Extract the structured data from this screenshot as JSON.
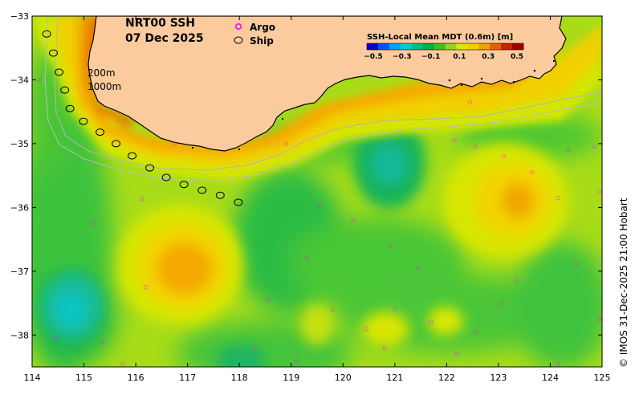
{
  "title": {
    "product": "NRT00 SSH",
    "date": "07 Dec 2025"
  },
  "legend": {
    "argo_label": "Argo",
    "ship_label": "Ship",
    "argo_color": "#ff00ff",
    "ship_color": "#000000"
  },
  "isobaths": {
    "shallow": "200m",
    "deep": "1000m"
  },
  "colorbar": {
    "title": "SSH-Local Mean MDT (0.6m) [m]",
    "ticks": [
      "−0.5",
      "−0.3",
      "−0.1",
      "0.1",
      "0.3",
      "0.5"
    ],
    "colors": [
      "#0000cc",
      "#0050ff",
      "#00a0ff",
      "#00d0d0",
      "#00c080",
      "#00b040",
      "#40c020",
      "#9ad020",
      "#d8e800",
      "#f0d000",
      "#f0a000",
      "#e86000",
      "#d02000",
      "#a00000"
    ]
  },
  "credit": "© IMOS 31-Dec-2025 21:00 Hobart",
  "axes": {
    "x_ticks": [
      "114",
      "115",
      "116",
      "117",
      "118",
      "119",
      "120",
      "121",
      "122",
      "123",
      "124",
      "125"
    ],
    "y_ticks": [
      "−33",
      "−34",
      "−35",
      "−36",
      "−37",
      "−38"
    ],
    "lon_range": [
      114,
      125
    ],
    "lat_range": [
      -38.5,
      -33
    ]
  },
  "colors": {
    "land": "#fbcb9e",
    "base": "#9ad820",
    "coast": "#000000",
    "isobath": "#b0b0b0"
  },
  "ship_track": [
    [
      114.28,
      -33.28
    ],
    [
      114.41,
      -33.58
    ],
    [
      114.52,
      -33.88
    ],
    [
      114.63,
      -34.16
    ],
    [
      114.73,
      -34.45
    ],
    [
      114.99,
      -34.65
    ],
    [
      115.31,
      -34.82
    ],
    [
      115.62,
      -35.0
    ],
    [
      115.93,
      -35.19
    ],
    [
      116.27,
      -35.38
    ],
    [
      116.59,
      -35.53
    ],
    [
      116.93,
      -35.64
    ],
    [
      117.28,
      -35.73
    ],
    [
      117.63,
      -35.81
    ],
    [
      117.98,
      -35.92
    ]
  ],
  "argo_floats": [
    [
      114.15,
      -34.0
    ],
    [
      116.12,
      -35.87
    ],
    [
      116.75,
      -35.0
    ],
    [
      118.9,
      -35.0
    ],
    [
      119.55,
      -35.97
    ],
    [
      120.2,
      -36.2
    ],
    [
      122.15,
      -34.95
    ],
    [
      122.55,
      -35.05
    ],
    [
      123.1,
      -35.2
    ],
    [
      124.35,
      -35.1
    ],
    [
      124.85,
      -35.05
    ],
    [
      124.95,
      -35.75
    ],
    [
      115.18,
      -36.25
    ],
    [
      119.3,
      -36.8
    ],
    [
      120.9,
      -36.6
    ],
    [
      121.45,
      -36.95
    ],
    [
      123.35,
      -37.15
    ],
    [
      124.5,
      -36.9
    ],
    [
      116.2,
      -37.25
    ],
    [
      118.55,
      -37.45
    ],
    [
      119.8,
      -37.6
    ],
    [
      120.45,
      -37.9
    ],
    [
      121.0,
      -37.6
    ],
    [
      121.7,
      -37.8
    ],
    [
      122.55,
      -37.95
    ],
    [
      123.05,
      -37.5
    ],
    [
      124.95,
      -37.75
    ],
    [
      114.45,
      -38.05
    ],
    [
      115.35,
      -38.1
    ],
    [
      118.3,
      -38.2
    ],
    [
      119.1,
      -38.4
    ],
    [
      120.8,
      -38.2
    ],
    [
      122.2,
      -38.3
    ],
    [
      124.15,
      -38.45
    ],
    [
      115.75,
      -38.45
    ],
    [
      122.45,
      -34.35
    ],
    [
      123.65,
      -35.45
    ],
    [
      124.15,
      -35.85
    ]
  ],
  "ssh_fields": {
    "features": [
      {
        "name": "coastal-current",
        "lon": 115.2,
        "lat": -34.1,
        "amplitude": 0.42
      },
      {
        "name": "central-warm-eddy",
        "lon": 116.9,
        "lat": -36.95,
        "amplitude": 0.36
      },
      {
        "name": "eastern-warm-eddy",
        "lon": 123.45,
        "lat": -35.95,
        "amplitude": 0.38
      },
      {
        "name": "western-cold-eddy",
        "lon": 114.75,
        "lat": -37.6,
        "amplitude": -0.14
      },
      {
        "name": "central-cold-eddy",
        "lon": 120.85,
        "lat": -35.3,
        "amplitude": -0.1
      }
    ]
  }
}
